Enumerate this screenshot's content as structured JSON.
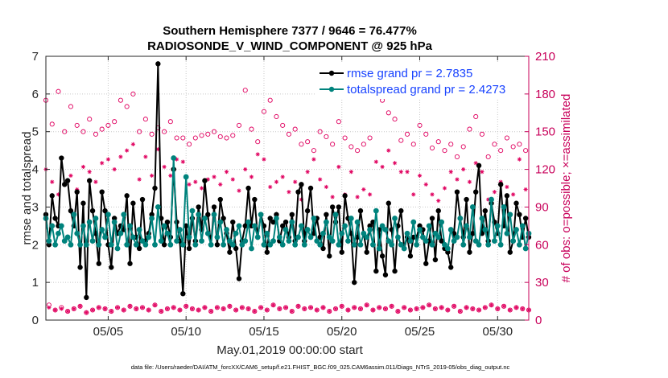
{
  "chart_data": {
    "type": "line",
    "title_line1": "Southern Hemisphere 7377 / 9646 = 76.477%",
    "title_line2": "RADIOSONDE_V_WIND_COMPONENT @ 925 hPa",
    "xlabel": "May.01,2019 00:00:00 start",
    "ylabel": "rmse and totalspread",
    "ylabel_right": "# of obs: o=possible; ×=assimilated",
    "footnote": "data file: /Users/raeder/DAI/ATM_forcXX/CAM6_setup/f.e21.FHIST_BGC.f09_025.CAM6assim.011/Diags_NTrS_2019-05/obs_diag_output.nc",
    "x_tick_labels": [
      "05/05",
      "05/10",
      "05/15",
      "05/20",
      "05/25",
      "05/30"
    ],
    "x_tick_days": [
      5,
      10,
      15,
      20,
      25,
      30
    ],
    "xlim": [
      1.0,
      32.0
    ],
    "ylim": [
      0,
      7
    ],
    "y_ticks": [
      "0",
      "1",
      "2",
      "3",
      "4",
      "5",
      "6",
      "7"
    ],
    "y2lim": [
      0,
      210
    ],
    "y2_ticks": [
      "0",
      "30",
      "60",
      "90",
      "120",
      "150",
      "180",
      "210"
    ],
    "grid": true,
    "legend_position": "top-right",
    "series": [
      {
        "name": "rmse grand pr = 2.7835",
        "color": "#000000",
        "marker": "asterisk",
        "values": [
          2.8,
          2.0,
          3.3,
          2.7,
          2.5,
          4.3,
          3.6,
          3.7,
          2.9,
          2.5,
          3.4,
          1.4,
          3.1,
          0.6,
          3.7,
          2.9,
          2.3,
          1.5,
          3.4,
          2.9,
          2.0,
          1.4,
          2.7,
          2.3,
          2.5,
          2.4,
          3.3,
          1.5,
          3.1,
          2.2,
          1.9,
          3.2,
          2.1,
          2.3,
          2.8,
          3.5,
          6.8,
          2.7,
          2.0,
          2.6,
          2.2,
          4.0,
          2.6,
          2.1,
          0.7,
          2.5,
          1.9,
          2.7,
          2.1,
          3.0,
          2.4,
          3.7,
          2.8,
          2.0,
          3.0,
          2.0,
          3.2,
          2.7,
          2.3,
          1.8,
          2.6,
          1.9,
          1.1,
          2.1,
          2.5,
          3.5,
          2.5,
          3.2,
          2.2,
          2.8,
          2.5,
          1.8,
          2.7,
          2.6,
          2.8,
          2.1,
          2.5,
          2.6,
          2.2,
          2.8,
          2.1,
          3.4,
          3.6,
          2.1,
          2.9,
          3.5,
          2.3,
          2.7,
          2.2,
          1.9,
          2.8,
          1.7,
          3.0,
          2.6,
          3.0,
          1.8,
          3.3,
          2.7,
          2.3,
          1.0,
          2.2,
          2.9,
          2.3,
          1.8,
          2.5,
          2.6,
          1.3,
          2.4,
          1.7,
          1.2,
          3.1,
          2.4,
          1.3,
          2.5,
          2.9,
          1.9,
          2.2,
          1.7,
          2.2,
          2.2,
          2.5,
          2.4,
          1.5,
          2.1,
          2.7,
          1.6,
          2.9,
          2.1,
          1.9,
          1.8,
          1.4,
          2.3,
          3.4,
          2.7,
          2.2,
          3.2,
          1.8,
          2.3,
          3.4,
          4.1,
          2.3,
          2.9,
          2.1,
          3.1,
          2.6,
          2.3,
          3.6,
          2.5,
          3.3,
          1.8,
          2.1,
          3.1,
          2.8,
          2.2,
          2.7,
          2.2
        ]
      },
      {
        "name": "totalspread grand pr = 2.4273",
        "color": "#00837d",
        "marker": "circle",
        "values": [
          2.7,
          2.1,
          2.5,
          2.0,
          2.3,
          2.5,
          2.1,
          2.2,
          2.0,
          2.8,
          2.3,
          2.0,
          2.5,
          2.0,
          2.6,
          2.1,
          2.7,
          2.0,
          2.4,
          2.2,
          2.8,
          2.0,
          2.6,
          1.9,
          2.3,
          2.8,
          2.0,
          2.5,
          2.2,
          2.0,
          2.4,
          2.1,
          2.0,
          2.2,
          2.7,
          2.0,
          3.0,
          2.1,
          2.5,
          2.3,
          2.0,
          4.3,
          2.1,
          2.4,
          2.0,
          3.8,
          2.2,
          2.9,
          2.0,
          2.8,
          2.1,
          2.7,
          2.3,
          2.0,
          2.8,
          2.2,
          2.6,
          2.0,
          2.4,
          2.1,
          2.0,
          2.3,
          2.5,
          2.0,
          2.1,
          2.6,
          1.9,
          2.5,
          2.2,
          2.8,
          2.0,
          2.3,
          2.0,
          2.1,
          2.7,
          2.2,
          2.0,
          2.4,
          2.1,
          2.6,
          2.0,
          2.2,
          2.5,
          2.0,
          2.4,
          2.2,
          2.7,
          2.1,
          2.0,
          2.3,
          2.6,
          2.2,
          2.1,
          2.8,
          2.0,
          2.3,
          2.5,
          2.1,
          2.7,
          2.0,
          2.6,
          2.0,
          2.3,
          2.2,
          2.4,
          2.0,
          2.9,
          1.9,
          2.5,
          2.4,
          2.1,
          2.0,
          2.7,
          2.2,
          2.0,
          1.9,
          2.3,
          2.1,
          2.6,
          2.0,
          2.4,
          2.2,
          2.1,
          2.5,
          2.0,
          2.3,
          2.2,
          2.6,
          2.0,
          1.9,
          2.4,
          2.1,
          2.2,
          2.7,
          2.0,
          2.5,
          2.2,
          3.0,
          2.1,
          2.0,
          2.7,
          2.4,
          2.0,
          3.2,
          2.1,
          2.5,
          2.0,
          3.0,
          2.3,
          2.8,
          2.1,
          2.4,
          2.0,
          2.5,
          1.9,
          2.3
        ]
      }
    ],
    "obs_possible": [
      175,
      12,
      156,
      8,
      182,
      10,
      150,
      7,
      170,
      9,
      155,
      11,
      150,
      6,
      160,
      8,
      148,
      10,
      152,
      9,
      155,
      7,
      158,
      10,
      175,
      8,
      170,
      11,
      180,
      9,
      150,
      10,
      160,
      8,
      148,
      12,
      153,
      7,
      150,
      9,
      158,
      10,
      145,
      8,
      145,
      11,
      140,
      9,
      145,
      8,
      147,
      10,
      148,
      7,
      150,
      10,
      146,
      9,
      145,
      11,
      147,
      8,
      155,
      10,
      183,
      9,
      152,
      7,
      142,
      10,
      166,
      8,
      175,
      12,
      162,
      9,
      155,
      10,
      148,
      7,
      152,
      11,
      140,
      9,
      142,
      10,
      135,
      8,
      150,
      10,
      146,
      7,
      140,
      9,
      158,
      11,
      145,
      8,
      138,
      10,
      135,
      9,
      140,
      12,
      145,
      8,
      178,
      10,
      175,
      9,
      165,
      11,
      160,
      7,
      143,
      10,
      148,
      8,
      140,
      9,
      155,
      10,
      148,
      12,
      137,
      9,
      142,
      10,
      135,
      8,
      140,
      11,
      130,
      7,
      138,
      10,
      152,
      9,
      162,
      8,
      148,
      10,
      130,
      12,
      140,
      9,
      135,
      11,
      145,
      8,
      138,
      10,
      140,
      9,
      135,
      8
    ],
    "obs_assimilated": [
      120,
      10,
      110,
      8,
      100,
      9,
      108,
      7,
      115,
      9,
      104,
      11,
      122,
      6,
      118,
      8,
      110,
      10,
      125,
      9,
      128,
      7,
      120,
      10,
      130,
      8,
      135,
      11,
      140,
      9,
      112,
      10,
      130,
      8,
      115,
      12,
      136,
      7,
      122,
      9,
      115,
      10,
      128,
      8,
      126,
      11,
      108,
      9,
      110,
      8,
      105,
      10,
      112,
      7,
      114,
      10,
      108,
      9,
      118,
      11,
      112,
      8,
      103,
      10,
      120,
      9,
      114,
      7,
      132,
      10,
      128,
      8,
      106,
      12,
      110,
      9,
      114,
      10,
      102,
      7,
      110,
      11,
      96,
      9,
      118,
      10,
      128,
      8,
      112,
      10,
      106,
      7,
      98,
      9,
      122,
      11,
      100,
      8,
      118,
      10,
      98,
      9,
      104,
      12,
      100,
      8,
      126,
      10,
      122,
      9,
      135,
      11,
      125,
      7,
      118,
      10,
      118,
      8,
      100,
      9,
      115,
      10,
      108,
      12,
      100,
      9,
      95,
      10,
      105,
      8,
      118,
      11,
      112,
      7,
      120,
      10,
      110,
      9,
      125,
      8,
      118,
      10,
      96,
      12,
      102,
      9,
      110,
      11,
      106,
      8,
      100,
      10,
      128,
      9,
      104,
      8
    ]
  }
}
